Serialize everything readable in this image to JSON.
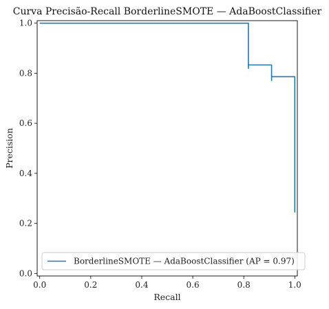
{
  "chart_data": {
    "type": "line",
    "title": "Curva Precisão-Recall BorderlineSMOTE — AdaBoostClassifier",
    "xlabel": "Recall",
    "ylabel": "Precision",
    "xlim": [
      -0.01,
      1.01
    ],
    "ylim": [
      -0.01,
      1.01
    ],
    "x_ticks": [
      0.0,
      0.2,
      0.4,
      0.6,
      0.8,
      1.0
    ],
    "y_ticks": [
      0.0,
      0.2,
      0.4,
      0.6,
      0.8,
      1.0
    ],
    "x_tick_labels": [
      "0.0",
      "0.2",
      "0.4",
      "0.6",
      "0.8",
      "1.0"
    ],
    "y_tick_labels": [
      "0.0",
      "0.2",
      "0.4",
      "0.6",
      "0.8",
      "1.0"
    ],
    "grid": false,
    "legend": {
      "placement": "bottom-right"
    },
    "series": [
      {
        "name": "BorderlineSMOTE — AdaBoostClassifier (AP = 0.97)",
        "color": "#1f77b4",
        "x": [
          0.0,
          0.818,
          0.818,
          0.818,
          0.909,
          0.909,
          0.909,
          1.0,
          1.0
        ],
        "y": [
          1.0,
          1.0,
          0.818,
          0.833,
          0.833,
          0.769,
          0.786,
          0.786,
          0.244
        ]
      }
    ]
  }
}
